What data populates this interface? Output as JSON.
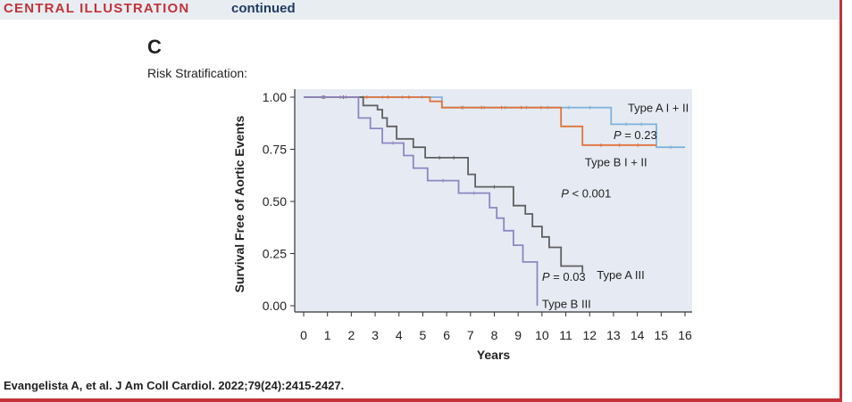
{
  "header": {
    "title": "CENTRAL ILLUSTRATION",
    "continued": "continued"
  },
  "panel_label": "C",
  "subtitle": "Risk Stratification:",
  "citation": "Evangelista A, et al. J Am Coll Cardiol. 2022;79(24):2415-2427.",
  "colors": {
    "type_a_i_ii": "#7fb2db",
    "type_b_i_ii": "#e0733a",
    "type_a_iii": "#5f5f5f",
    "type_b_iii": "#8e86c2",
    "plot_bg": "#e6ebf3",
    "accent": "#c0333a"
  },
  "chart_data": {
    "type": "line",
    "subtype": "kaplan-meier step",
    "xlabel": "Years",
    "ylabel": "Survival Free of Aortic Events",
    "xlim": [
      0,
      16
    ],
    "ylim": [
      0,
      1
    ],
    "x_ticks": [
      "0",
      "1",
      "2",
      "3",
      "4",
      "5",
      "6",
      "7",
      "8",
      "9",
      "10",
      "11",
      "12",
      "13",
      "14",
      "15",
      "16"
    ],
    "y_ticks": [
      "0.00",
      "0.25",
      "0.50",
      "0.75",
      "1.00"
    ],
    "grid": false,
    "series": [
      {
        "name": "Type A I + II",
        "color_key": "type_a_i_ii",
        "points": [
          [
            0,
            1.0
          ],
          [
            5.8,
            1.0
          ],
          [
            5.8,
            0.95
          ],
          [
            12.9,
            0.95
          ],
          [
            12.9,
            0.87
          ],
          [
            14.8,
            0.87
          ],
          [
            14.8,
            0.76
          ],
          [
            16,
            0.76
          ]
        ]
      },
      {
        "name": "Type B I + II",
        "color_key": "type_b_i_ii",
        "points": [
          [
            0,
            1.0
          ],
          [
            5.3,
            1.0
          ],
          [
            5.3,
            0.98
          ],
          [
            5.8,
            0.98
          ],
          [
            5.8,
            0.95
          ],
          [
            10.8,
            0.95
          ],
          [
            10.8,
            0.86
          ],
          [
            11.7,
            0.86
          ],
          [
            11.7,
            0.77
          ],
          [
            14.8,
            0.77
          ]
        ]
      },
      {
        "name": "Type A III",
        "color_key": "type_a_iii",
        "points": [
          [
            0,
            1.0
          ],
          [
            2.5,
            1.0
          ],
          [
            2.5,
            0.96
          ],
          [
            3.1,
            0.96
          ],
          [
            3.1,
            0.94
          ],
          [
            3.3,
            0.94
          ],
          [
            3.3,
            0.9
          ],
          [
            3.5,
            0.9
          ],
          [
            3.5,
            0.86
          ],
          [
            3.9,
            0.86
          ],
          [
            3.9,
            0.8
          ],
          [
            4.6,
            0.8
          ],
          [
            4.6,
            0.76
          ],
          [
            5.1,
            0.76
          ],
          [
            5.1,
            0.71
          ],
          [
            6.9,
            0.71
          ],
          [
            6.9,
            0.63
          ],
          [
            7.2,
            0.63
          ],
          [
            7.2,
            0.57
          ],
          [
            8.8,
            0.57
          ],
          [
            8.8,
            0.48
          ],
          [
            9.3,
            0.48
          ],
          [
            9.3,
            0.44
          ],
          [
            9.6,
            0.44
          ],
          [
            9.6,
            0.38
          ],
          [
            10.0,
            0.38
          ],
          [
            10.0,
            0.33
          ],
          [
            10.3,
            0.33
          ],
          [
            10.3,
            0.28
          ],
          [
            10.8,
            0.28
          ],
          [
            10.8,
            0.19
          ],
          [
            11.7,
            0.19
          ],
          [
            11.7,
            0.16
          ]
        ]
      },
      {
        "name": "Type B III",
        "color_key": "type_b_iii",
        "points": [
          [
            0,
            1.0
          ],
          [
            2.3,
            1.0
          ],
          [
            2.3,
            0.9
          ],
          [
            2.8,
            0.9
          ],
          [
            2.8,
            0.85
          ],
          [
            3.3,
            0.85
          ],
          [
            3.3,
            0.78
          ],
          [
            4.2,
            0.78
          ],
          [
            4.2,
            0.72
          ],
          [
            4.6,
            0.72
          ],
          [
            4.6,
            0.66
          ],
          [
            5.2,
            0.66
          ],
          [
            5.2,
            0.6
          ],
          [
            6.5,
            0.6
          ],
          [
            6.5,
            0.54
          ],
          [
            7.8,
            0.54
          ],
          [
            7.8,
            0.47
          ],
          [
            8.1,
            0.47
          ],
          [
            8.1,
            0.42
          ],
          [
            8.4,
            0.42
          ],
          [
            8.4,
            0.36
          ],
          [
            8.8,
            0.36
          ],
          [
            8.8,
            0.29
          ],
          [
            9.2,
            0.29
          ],
          [
            9.2,
            0.21
          ],
          [
            9.8,
            0.21
          ],
          [
            9.8,
            0.0
          ]
        ]
      }
    ],
    "annotations": [
      {
        "text": "Type A I + II",
        "x": 13.6,
        "y": 0.95
      },
      {
        "text": "P = 0.23",
        "x": 13.0,
        "y": 0.82
      },
      {
        "text": "Type B I + II",
        "x": 11.8,
        "y": 0.69
      },
      {
        "text": "P < 0.001",
        "x": 10.8,
        "y": 0.54
      },
      {
        "text": "P = 0.03",
        "x": 10.0,
        "y": 0.14
      },
      {
        "text": "Type A III",
        "x": 12.3,
        "y": 0.15
      },
      {
        "text": "Type B III",
        "x": 10.0,
        "y": 0.01
      }
    ]
  }
}
